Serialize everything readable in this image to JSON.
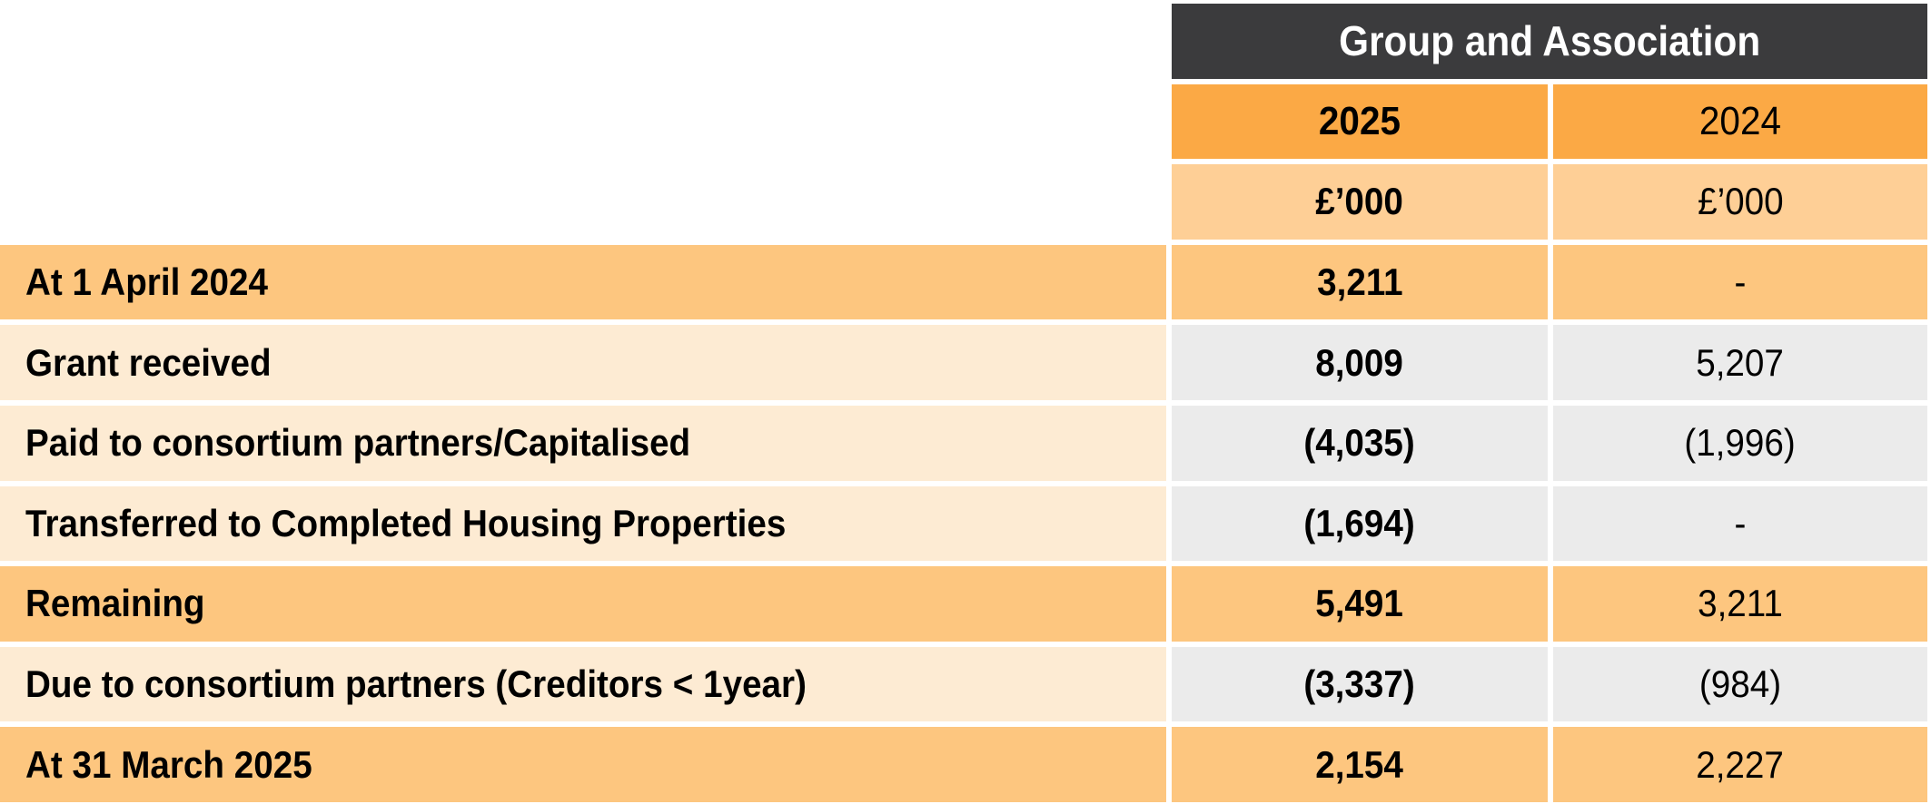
{
  "title": "Group and Association",
  "columns": {
    "y2025": {
      "year": "2025",
      "unit": "£’000"
    },
    "y2024": {
      "year": "2024",
      "unit": "£’000"
    }
  },
  "rows": [
    {
      "label": "At 1 April 2024",
      "v2025": "3,211",
      "v2024": "-"
    },
    {
      "label": "Grant received",
      "v2025": "8,009",
      "v2024": "5,207"
    },
    {
      "label": "Paid to consortium partners/Capitalised",
      "v2025": "(4,035)",
      "v2024": "(1,996)"
    },
    {
      "label": "Transferred to Completed Housing Properties",
      "v2025": "(1,694)",
      "v2024": "-"
    },
    {
      "label": "Remaining",
      "v2025": "5,491",
      "v2024": "3,211"
    },
    {
      "label": "Due to consortium partners (Creditors < 1year)",
      "v2025": "(3,337)",
      "v2024": "(984)"
    },
    {
      "label": "At 31 March 2025",
      "v2025": "2,154",
      "v2024": "2,227"
    }
  ],
  "colors": {
    "header_bg": "#3b3b3d",
    "header_text": "#ffffff",
    "year_row_bg": "#fba945",
    "unit_row_bg": "#fecf96",
    "accent_row_bg": "#fdc67f",
    "light_label_bg": "#fdebd3",
    "gray_value_bg": "#ebebeb",
    "body_text": "#000000",
    "background": "#ffffff"
  }
}
